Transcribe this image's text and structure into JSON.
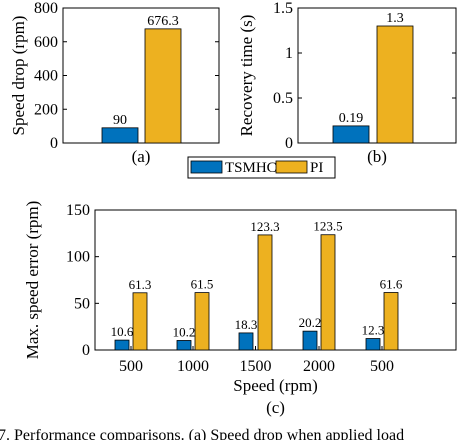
{
  "colors": {
    "series1": "#0072BD",
    "series2": "#EDB120",
    "axis": "#000000"
  },
  "legend": {
    "entries": [
      "TSMHC",
      "PI"
    ]
  },
  "caption_text": "7. Performance comparisons. (a) Speed drop when applied load",
  "chart_data": [
    {
      "id": "a",
      "type": "bar",
      "panel_label": "(a)",
      "ylabel": "Speed drop (rpm)",
      "ylim": [
        0,
        800
      ],
      "yticks": [
        0,
        200,
        400,
        600,
        800
      ],
      "tick_labels": [
        "0",
        "200",
        "400",
        "600",
        "800"
      ],
      "categories": [
        ""
      ],
      "series": [
        {
          "name": "TSMHC",
          "values": [
            90
          ],
          "labels": [
            "90"
          ]
        },
        {
          "name": "PI",
          "values": [
            676.3
          ],
          "labels": [
            "676.3"
          ]
        }
      ]
    },
    {
      "id": "b",
      "type": "bar",
      "panel_label": "(b)",
      "ylabel": "Recovery time (s)",
      "ylim": [
        0,
        1.5
      ],
      "yticks": [
        0,
        0.5,
        1,
        1.5
      ],
      "tick_labels": [
        "0",
        "0.5",
        "1",
        "1.5"
      ],
      "categories": [
        ""
      ],
      "series": [
        {
          "name": "TSMHC",
          "values": [
            0.19
          ],
          "labels": [
            "0.19"
          ]
        },
        {
          "name": "PI",
          "values": [
            1.3
          ],
          "labels": [
            "1.3"
          ]
        }
      ]
    },
    {
      "id": "c",
      "type": "bar",
      "panel_label": "(c)",
      "ylabel": "Max. speed error (rpm)",
      "xlabel": "Speed (rpm)",
      "ylim": [
        0,
        150
      ],
      "yticks": [
        0,
        50,
        100,
        150
      ],
      "tick_labels": [
        "0",
        "50",
        "100",
        "150"
      ],
      "categories": [
        "500",
        "1000",
        "1500",
        "2000",
        "500"
      ],
      "series": [
        {
          "name": "TSMHC",
          "values": [
            10.6,
            10.2,
            18.3,
            20.2,
            12.3
          ],
          "labels": [
            "10.6",
            "10.2",
            "18.3",
            "20.2",
            "12.3"
          ]
        },
        {
          "name": "PI",
          "values": [
            61.3,
            61.5,
            123.3,
            123.5,
            61.6
          ],
          "labels": [
            "61.3",
            "61.5",
            "123.3",
            "123.5",
            "61.6"
          ]
        }
      ]
    }
  ]
}
